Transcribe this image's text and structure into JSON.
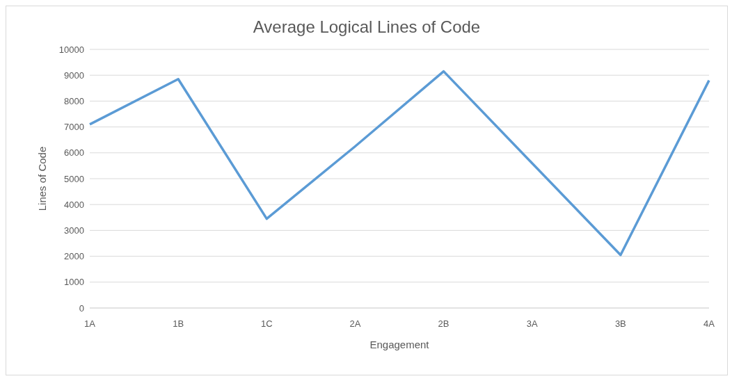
{
  "chart_data": {
    "type": "line",
    "title": "Average Logical Lines of Code",
    "xlabel": "Engagement",
    "ylabel": "Lines of Code",
    "categories": [
      "1A",
      "1B",
      "1C",
      "2A",
      "2B",
      "3A",
      "3B",
      "4A"
    ],
    "series": [
      {
        "color": "#5b9bd5",
        "values": [
          7100,
          8850,
          3450,
          6250,
          9150,
          5600,
          2050,
          8800
        ]
      }
    ],
    "ylim": [
      0,
      10000
    ],
    "yticks": [
      0,
      1000,
      2000,
      3000,
      4000,
      5000,
      6000,
      7000,
      8000,
      9000,
      10000
    ],
    "grid": "y",
    "legend": false,
    "marker": "none",
    "line_style": "solid"
  }
}
